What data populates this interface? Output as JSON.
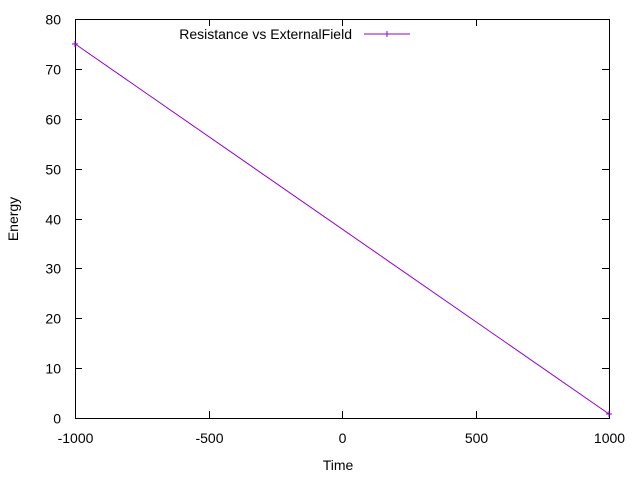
{
  "chart_data": {
    "type": "line",
    "title": "",
    "xlabel": "Time",
    "ylabel": "Energy",
    "xlim": [
      -1000,
      1000
    ],
    "ylim": [
      0,
      80
    ],
    "xticks": [
      -1000,
      -500,
      0,
      500,
      1000
    ],
    "xtick_labels": [
      "-1000",
      "-500",
      "0",
      "500",
      "1000"
    ],
    "yticks": [
      0,
      10,
      20,
      30,
      40,
      50,
      60,
      70,
      80
    ],
    "ytick_labels": [
      "0",
      "10",
      "20",
      "30",
      "40",
      "50",
      "60",
      "70",
      "80"
    ],
    "grid": false,
    "legend_position": "top-left",
    "series": [
      {
        "name": "Resistance vs ExternalField",
        "color": "#9400d3",
        "marker": "plus",
        "x": [
          -1000,
          1000
        ],
        "y": [
          75,
          0.8
        ]
      }
    ]
  }
}
